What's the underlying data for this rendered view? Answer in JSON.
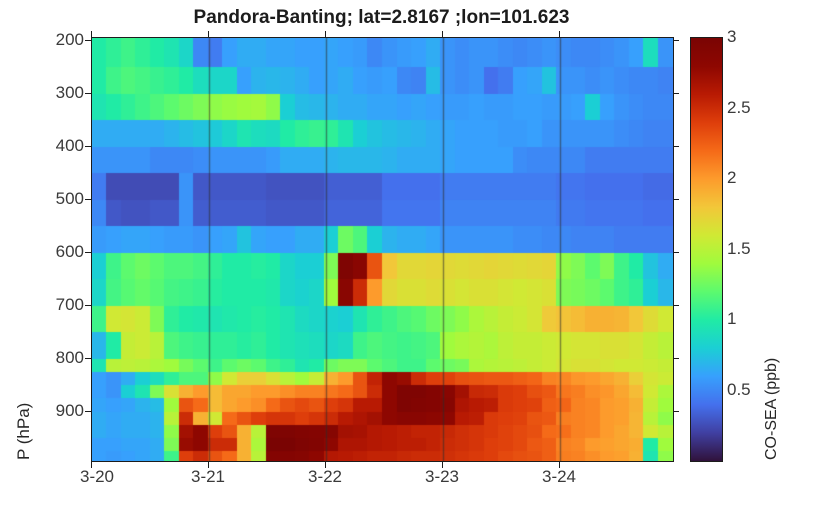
{
  "title": "Pandora-Banting; lat=2.8167 ;lon=101.623",
  "y_axis": {
    "label": "P (hPa)",
    "ticks": [
      "200",
      "300",
      "400",
      "500",
      "600",
      "700",
      "800",
      "900"
    ]
  },
  "x_axis": {
    "ticks": [
      "3-20",
      "3-21",
      "3-22",
      "3-23",
      "3-24"
    ]
  },
  "colorbar": {
    "label": "CO-SEA (ppb)",
    "ticks": [
      "0.5",
      "1",
      "1.5",
      "2",
      "2.5",
      "3"
    ],
    "min": 0,
    "max": 3
  },
  "chart_data": {
    "type": "heatmap",
    "title": "Pandora-Banting; lat=2.8167 ;lon=101.623",
    "ylabel": "P (hPa)",
    "colorbar_label": "CO-SEA (ppb)",
    "x_tick_labels": [
      "3-20",
      "3-21",
      "3-22",
      "3-23",
      "3-24"
    ],
    "x_start_day": "3-20",
    "x_end_day": "3-25",
    "n_time_steps": 40,
    "hours_per_step": 3,
    "y_axis_range_hpa": [
      194,
      992
    ],
    "pressure_level_tops_hpa": [
      200,
      250,
      300,
      350,
      400,
      450,
      500,
      550,
      600,
      650,
      700,
      750,
      800,
      825,
      850,
      875,
      900,
      925,
      950,
      975
    ],
    "pressure_bottom_hpa": 992,
    "value_range_ppb": [
      0,
      3
    ],
    "colormap": "turbo",
    "colormap_stops": [
      [
        0.0,
        "#30123b"
      ],
      [
        0.067,
        "#4040a2"
      ],
      [
        0.133,
        "#4470ed"
      ],
      [
        0.2,
        "#37a0fd"
      ],
      [
        0.267,
        "#1bcfd4"
      ],
      [
        0.333,
        "#20eba5"
      ],
      [
        0.4,
        "#5cfa6e"
      ],
      [
        0.467,
        "#a0fb3d"
      ],
      [
        0.533,
        "#d0e934"
      ],
      [
        0.6,
        "#f2c739"
      ],
      [
        0.667,
        "#fd9b2c"
      ],
      [
        0.733,
        "#f56a18"
      ],
      [
        0.8,
        "#de3e0b"
      ],
      [
        0.867,
        "#b81a03"
      ],
      [
        0.933,
        "#8e0701"
      ],
      [
        1.0,
        "#7a0403"
      ]
    ],
    "values_ppb": [
      [
        1.0,
        1.05,
        1.1,
        1.05,
        1.0,
        0.95,
        0.85,
        0.5,
        0.45,
        0.6,
        0.65,
        0.65,
        0.62,
        0.62,
        0.6,
        0.6,
        0.62,
        0.6,
        0.58,
        0.5,
        0.55,
        0.58,
        0.6,
        0.65,
        0.55,
        0.52,
        0.55,
        0.55,
        0.52,
        0.5,
        0.52,
        0.55,
        0.52,
        0.5,
        0.5,
        0.52,
        0.55,
        0.6,
        0.9,
        0.55
      ],
      [
        1.0,
        1.1,
        1.15,
        1.12,
        1.08,
        1.05,
        1.0,
        0.9,
        0.85,
        0.85,
        0.6,
        0.68,
        0.7,
        0.68,
        0.65,
        0.6,
        0.62,
        0.65,
        0.6,
        0.58,
        0.6,
        0.5,
        0.48,
        0.72,
        0.55,
        0.52,
        0.55,
        0.4,
        0.45,
        0.6,
        0.62,
        0.75,
        0.55,
        0.55,
        0.52,
        0.55,
        0.52,
        0.5,
        0.5,
        0.48
      ],
      [
        0.95,
        1.0,
        1.05,
        1.1,
        1.15,
        1.2,
        1.25,
        1.3,
        1.35,
        1.38,
        1.4,
        1.42,
        1.35,
        0.8,
        0.72,
        0.7,
        0.68,
        0.65,
        0.65,
        0.62,
        0.62,
        0.6,
        0.62,
        0.6,
        0.58,
        0.58,
        0.6,
        0.58,
        0.58,
        0.6,
        0.6,
        0.58,
        0.58,
        0.6,
        0.8,
        0.6,
        0.55,
        0.52,
        0.5,
        0.5
      ],
      [
        0.65,
        0.65,
        0.65,
        0.65,
        0.65,
        0.68,
        0.72,
        0.75,
        0.78,
        0.85,
        0.95,
        0.9,
        0.88,
        1.0,
        1.05,
        1.08,
        1.05,
        0.95,
        0.8,
        0.75,
        0.72,
        0.7,
        0.68,
        0.65,
        0.62,
        0.6,
        0.6,
        0.6,
        0.58,
        0.58,
        0.6,
        0.55,
        0.55,
        0.55,
        0.55,
        0.55,
        0.52,
        0.5,
        0.48,
        0.48
      ],
      [
        0.55,
        0.55,
        0.55,
        0.55,
        0.5,
        0.5,
        0.5,
        0.52,
        0.55,
        0.55,
        0.55,
        0.55,
        0.58,
        0.65,
        0.65,
        0.65,
        0.68,
        0.7,
        0.7,
        0.7,
        0.68,
        0.65,
        0.65,
        0.65,
        0.62,
        0.6,
        0.6,
        0.6,
        0.6,
        0.52,
        0.5,
        0.5,
        0.5,
        0.5,
        0.45,
        0.45,
        0.45,
        0.45,
        0.45,
        0.45
      ],
      [
        0.45,
        0.25,
        0.25,
        0.25,
        0.25,
        0.25,
        0.55,
        0.3,
        0.3,
        0.3,
        0.3,
        0.3,
        0.28,
        0.28,
        0.28,
        0.28,
        0.33,
        0.33,
        0.33,
        0.33,
        0.4,
        0.4,
        0.4,
        0.4,
        0.45,
        0.45,
        0.45,
        0.45,
        0.45,
        0.45,
        0.45,
        0.45,
        0.42,
        0.42,
        0.4,
        0.4,
        0.4,
        0.4,
        0.38,
        0.38
      ],
      [
        0.5,
        0.3,
        0.28,
        0.28,
        0.3,
        0.3,
        0.55,
        0.32,
        0.32,
        0.32,
        0.32,
        0.32,
        0.3,
        0.3,
        0.3,
        0.3,
        0.35,
        0.35,
        0.35,
        0.35,
        0.42,
        0.42,
        0.42,
        0.42,
        0.48,
        0.48,
        0.48,
        0.48,
        0.48,
        0.48,
        0.48,
        0.48,
        0.44,
        0.44,
        0.42,
        0.42,
        0.42,
        0.42,
        0.4,
        0.4
      ],
      [
        0.58,
        0.6,
        0.62,
        0.62,
        0.6,
        0.58,
        0.58,
        0.55,
        0.6,
        0.62,
        0.75,
        0.62,
        0.6,
        0.6,
        0.65,
        0.65,
        0.8,
        1.25,
        1.15,
        0.8,
        0.68,
        0.65,
        0.65,
        0.62,
        0.55,
        0.55,
        0.55,
        0.55,
        0.55,
        0.52,
        0.52,
        0.5,
        0.5,
        0.48,
        0.48,
        0.48,
        0.45,
        0.45,
        0.45,
        0.45
      ],
      [
        0.8,
        1.1,
        1.2,
        1.25,
        1.2,
        1.15,
        1.15,
        1.12,
        1.05,
        1.0,
        1.0,
        1.02,
        1.0,
        0.85,
        0.8,
        0.8,
        1.3,
        2.95,
        2.85,
        2.3,
        1.8,
        1.7,
        1.7,
        1.72,
        1.7,
        1.68,
        1.7,
        1.72,
        1.7,
        1.68,
        1.7,
        1.72,
        1.35,
        1.3,
        1.2,
        1.3,
        1.1,
        1.0,
        0.75,
        0.65
      ],
      [
        0.85,
        1.12,
        1.18,
        1.22,
        1.18,
        1.12,
        1.1,
        1.08,
        1.02,
        1.0,
        1.0,
        1.0,
        0.98,
        0.85,
        0.82,
        0.85,
        1.4,
        2.85,
        2.5,
        2.0,
        1.7,
        1.65,
        1.65,
        1.68,
        1.65,
        1.62,
        1.65,
        1.65,
        1.62,
        1.6,
        1.62,
        1.65,
        1.3,
        1.28,
        1.25,
        1.2,
        1.1,
        1.05,
        0.8,
        0.7
      ],
      [
        1.1,
        1.6,
        1.62,
        1.58,
        1.3,
        1.05,
        1.0,
        0.98,
        0.95,
        0.98,
        1.0,
        1.02,
        1.0,
        0.95,
        0.88,
        0.85,
        0.82,
        0.8,
        0.95,
        1.05,
        1.1,
        1.15,
        1.18,
        1.25,
        1.3,
        1.35,
        1.45,
        1.5,
        1.55,
        1.58,
        1.62,
        1.78,
        1.82,
        1.85,
        1.9,
        1.9,
        1.88,
        1.8,
        1.68,
        1.6
      ],
      [
        0.7,
        1.0,
        1.55,
        1.58,
        1.5,
        1.15,
        1.1,
        1.08,
        1.05,
        1.05,
        1.02,
        1.05,
        1.0,
        0.95,
        0.92,
        0.9,
        0.85,
        0.88,
        1.1,
        1.15,
        1.12,
        1.1,
        1.12,
        1.15,
        1.4,
        1.45,
        1.48,
        1.45,
        1.52,
        1.55,
        1.55,
        1.58,
        1.6,
        1.62,
        1.62,
        1.65,
        1.65,
        1.62,
        1.55,
        1.5
      ],
      [
        0.95,
        1.5,
        1.52,
        1.5,
        1.45,
        1.4,
        1.28,
        1.2,
        1.1,
        1.2,
        1.25,
        1.2,
        1.1,
        1.05,
        0.95,
        1.0,
        1.25,
        1.3,
        1.3,
        1.2,
        1.15,
        1.1,
        1.1,
        1.2,
        1.25,
        1.28,
        1.45,
        1.48,
        1.5,
        1.52,
        1.55,
        1.58,
        1.62,
        1.65,
        1.65,
        1.62,
        1.6,
        1.6,
        1.58,
        1.55
      ],
      [
        0.6,
        0.55,
        0.65,
        0.8,
        0.9,
        1.05,
        1.15,
        1.15,
        1.35,
        1.6,
        1.75,
        1.75,
        1.65,
        1.5,
        1.4,
        1.55,
        1.9,
        2.0,
        2.3,
        2.55,
        2.8,
        2.75,
        2.5,
        2.4,
        2.38,
        2.32,
        2.3,
        2.28,
        2.28,
        2.25,
        2.22,
        2.1,
        2.08,
        2.02,
        2.0,
        1.95,
        1.9,
        1.75,
        1.62,
        1.58
      ],
      [
        0.6,
        0.55,
        0.8,
        0.95,
        1.3,
        1.65,
        1.9,
        2.0,
        1.85,
        1.95,
        1.95,
        2.0,
        2.0,
        2.05,
        2.1,
        2.1,
        2.15,
        2.2,
        2.3,
        2.5,
        2.8,
        2.95,
        2.95,
        2.9,
        2.85,
        2.7,
        2.52,
        2.5,
        2.42,
        2.4,
        2.32,
        2.28,
        2.15,
        2.12,
        2.05,
        2.02,
        1.95,
        1.85,
        1.6,
        1.45
      ],
      [
        0.62,
        0.6,
        0.62,
        0.68,
        0.72,
        1.4,
        2.3,
        2.2,
        1.85,
        1.95,
        2.0,
        2.05,
        2.2,
        2.3,
        2.35,
        2.3,
        2.4,
        2.45,
        2.6,
        2.6,
        2.8,
        2.95,
        2.92,
        2.9,
        2.88,
        2.65,
        2.6,
        2.58,
        2.42,
        2.4,
        2.38,
        2.25,
        2.22,
        2.1,
        2.08,
        2.0,
        1.98,
        1.9,
        1.55,
        1.4
      ],
      [
        0.65,
        0.62,
        0.65,
        0.65,
        0.68,
        1.5,
        2.5,
        1.9,
        1.6,
        2.2,
        2.3,
        2.4,
        2.45,
        2.45,
        2.4,
        2.45,
        2.5,
        2.6,
        2.65,
        2.7,
        2.8,
        2.85,
        2.85,
        2.82,
        2.8,
        2.6,
        2.58,
        2.42,
        2.4,
        2.38,
        2.3,
        2.28,
        2.12,
        2.1,
        2.08,
        2.0,
        1.98,
        1.88,
        1.5,
        1.35
      ],
      [
        0.65,
        0.62,
        0.65,
        0.65,
        0.68,
        1.35,
        2.7,
        2.8,
        2.4,
        2.3,
        1.9,
        1.5,
        2.95,
        2.95,
        2.92,
        2.9,
        2.88,
        2.7,
        2.68,
        2.62,
        2.6,
        2.58,
        2.55,
        2.55,
        2.52,
        2.48,
        2.45,
        2.42,
        2.38,
        2.35,
        2.32,
        2.2,
        2.18,
        2.1,
        2.08,
        2.0,
        1.95,
        1.88,
        1.6,
        1.5
      ],
      [
        0.6,
        0.6,
        0.62,
        0.62,
        0.65,
        1.3,
        2.75,
        2.8,
        2.5,
        2.5,
        1.9,
        1.45,
        3.0,
        3.0,
        2.95,
        2.92,
        2.8,
        2.65,
        2.65,
        2.62,
        2.6,
        2.58,
        2.58,
        2.55,
        2.5,
        2.48,
        2.45,
        2.4,
        2.38,
        2.35,
        2.28,
        2.25,
        2.1,
        2.08,
        2.0,
        1.98,
        1.95,
        1.92,
        1.0,
        1.4
      ],
      [
        0.6,
        0.58,
        0.6,
        0.62,
        0.65,
        1.1,
        2.4,
        2.5,
        2.3,
        2.2,
        1.9,
        1.5,
        2.9,
        2.9,
        2.88,
        2.8,
        2.62,
        2.6,
        2.58,
        2.55,
        2.55,
        2.52,
        2.5,
        2.5,
        2.48,
        2.45,
        2.42,
        2.4,
        2.35,
        2.32,
        2.3,
        2.25,
        2.12,
        2.1,
        2.05,
        2.0,
        1.98,
        1.9,
        0.95,
        1.35
      ]
    ]
  }
}
